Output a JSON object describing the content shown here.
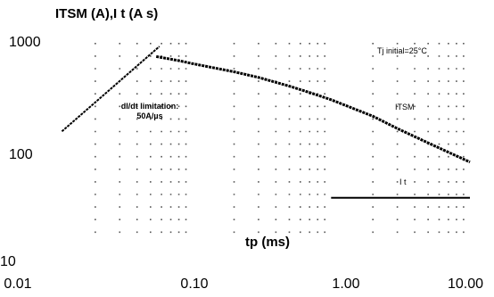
{
  "chart_data": {
    "type": "line",
    "title": "ITSM (A),I t (A s)",
    "xlabel": "tp (ms)",
    "ylabel": "",
    "x_scale": "log",
    "y_scale": "log",
    "xlim": [
      0.01,
      10
    ],
    "ylim": [
      10,
      1000
    ],
    "grid": true,
    "x_tick_labels": [
      "0.01",
      "0.10",
      "1.00",
      "10.00"
    ],
    "y_tick_labels": [
      "10",
      "100",
      "1000"
    ],
    "series": [
      {
        "name": "ITSM",
        "x": [
          0.055,
          0.08,
          0.1,
          0.2,
          0.3,
          0.5,
          0.7,
          1.0,
          2.0,
          3.0,
          5.0,
          7.0,
          10.0
        ],
        "y": [
          760,
          700,
          660,
          560,
          500,
          420,
          370,
          320,
          230,
          180,
          135,
          112,
          92
        ]
      },
      {
        "name": "I t",
        "x": [
          1.0,
          10.0
        ],
        "y": [
          45,
          45
        ]
      },
      {
        "name": "",
        "x": [
          0.0115,
          0.058
        ],
        "y": [
          170,
          930
        ]
      }
    ],
    "annotations": [
      {
        "text": "Tj initial=25°C",
        "x": 3.3,
        "y": 760
      },
      {
        "text": "ITSM",
        "x": 3.5,
        "y": 285
      },
      {
        "text": "I t",
        "x": 4.2,
        "y": 53
      },
      {
        "text": "dI/dt limitation:",
        "x": 0.027,
        "y": 300
      },
      {
        "text": "50A/µs",
        "x": 0.027,
        "y": 245
      }
    ]
  }
}
